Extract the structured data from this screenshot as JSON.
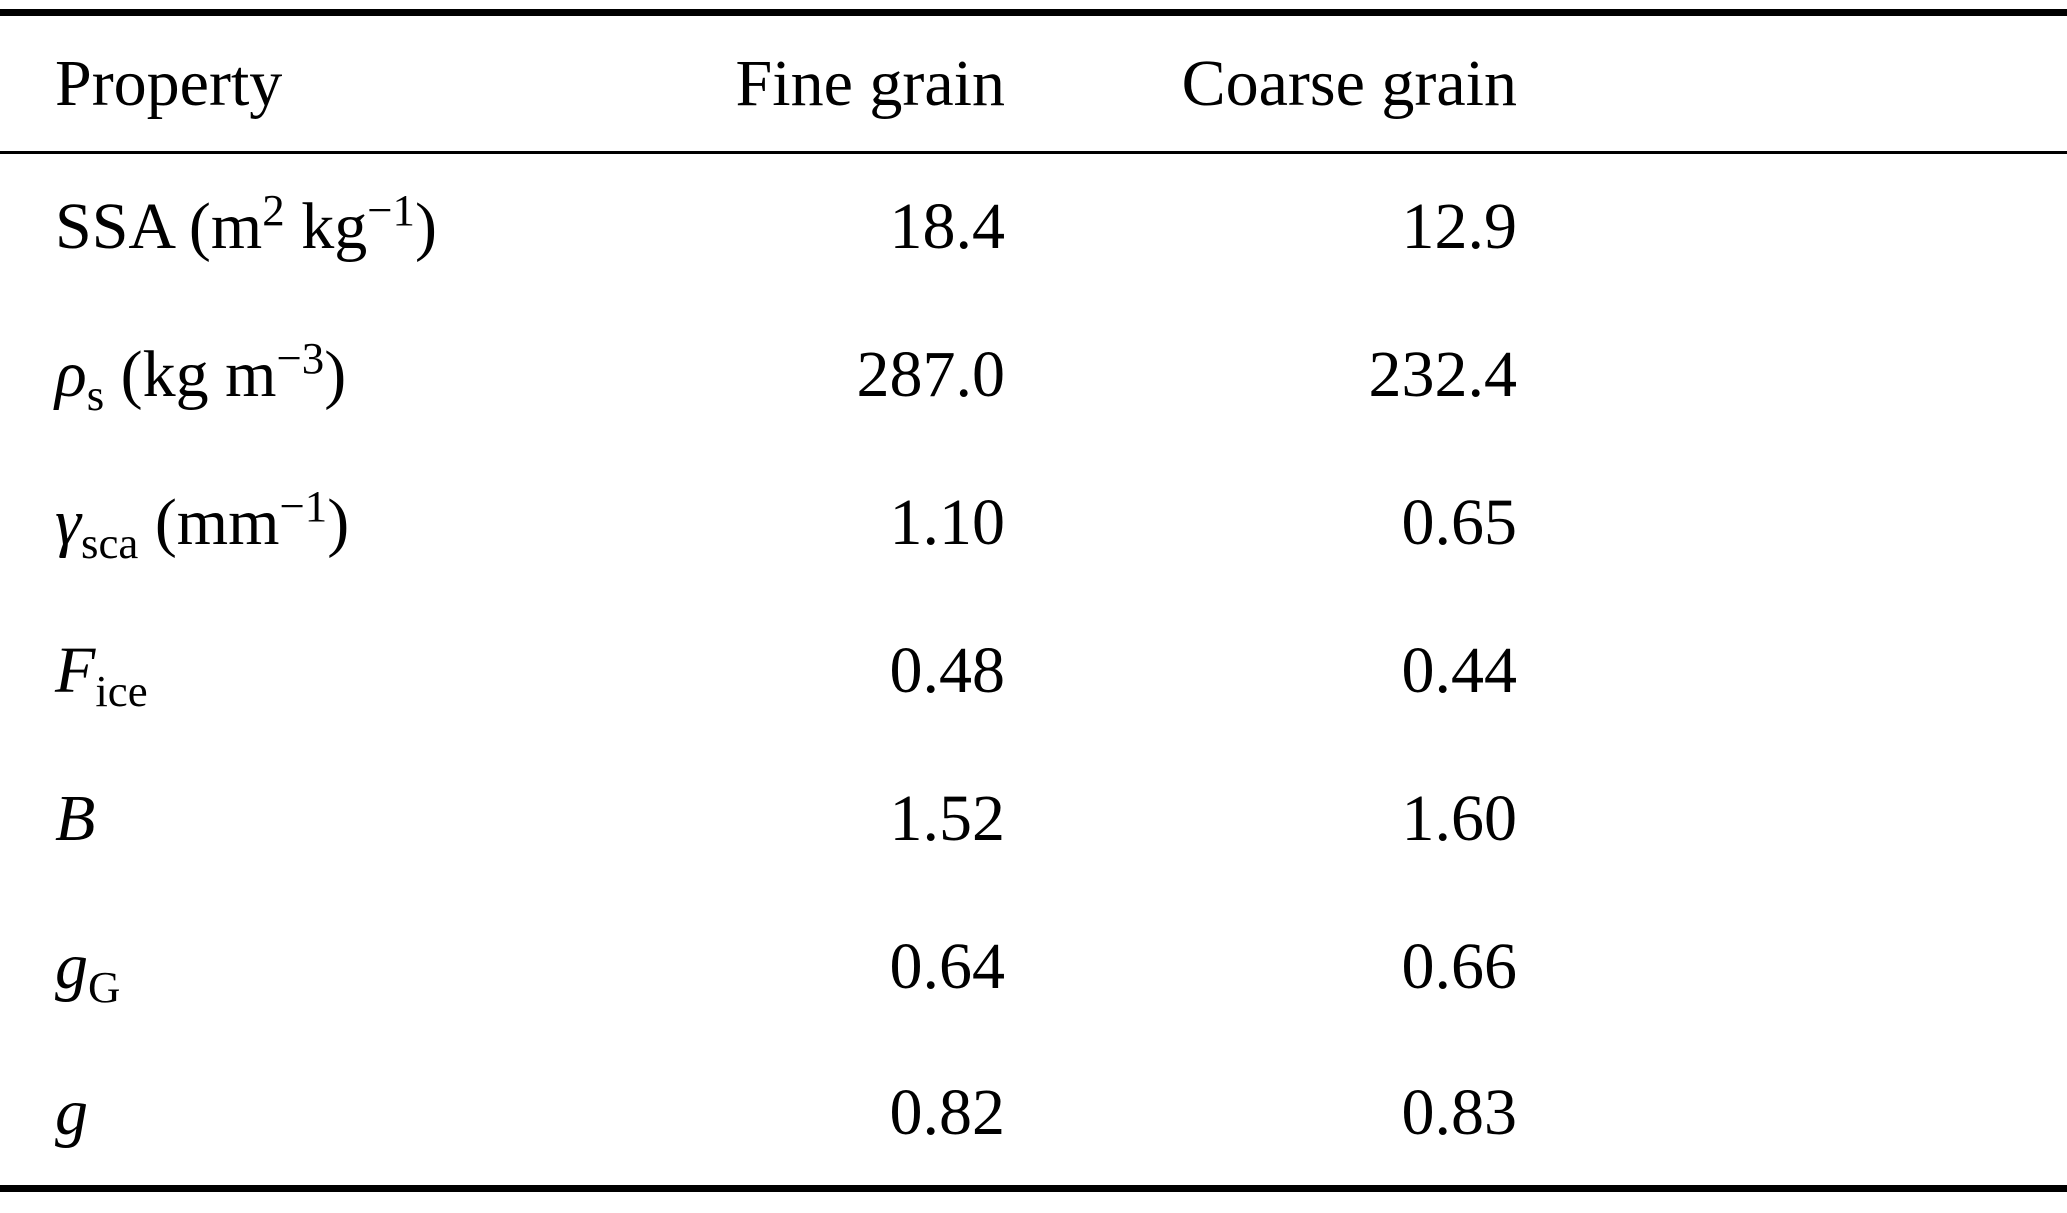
{
  "table": {
    "columns": [
      "Property",
      "Fine grain",
      "Coarse grain"
    ],
    "rows": [
      {
        "property": "SSA (m<sup>2</sup> kg<sup>−1</sup>)",
        "fine": "18.4",
        "coarse": "12.9"
      },
      {
        "property": "<i>ρ</i><sub>s</sub> (kg m<sup>−3</sup>)",
        "fine": "287.0",
        "coarse": "232.4"
      },
      {
        "property": "<i>γ</i><sub>sca</sub> (mm<sup>−1</sup>)",
        "fine": "1.10",
        "coarse": "0.65"
      },
      {
        "property": "<i>F</i><sub>ice</sub>",
        "fine": "0.48",
        "coarse": "0.44"
      },
      {
        "property": "<i>B</i>",
        "fine": "1.52",
        "coarse": "1.60"
      },
      {
        "property": "<i>g</i><sub>G</sub>",
        "fine": "0.64",
        "coarse": "0.66"
      },
      {
        "property": "<i>g</i>",
        "fine": "0.82",
        "coarse": "0.83"
      }
    ]
  },
  "colors": {
    "text": "#000000",
    "background": "#ffffff",
    "rule": "#000000"
  }
}
